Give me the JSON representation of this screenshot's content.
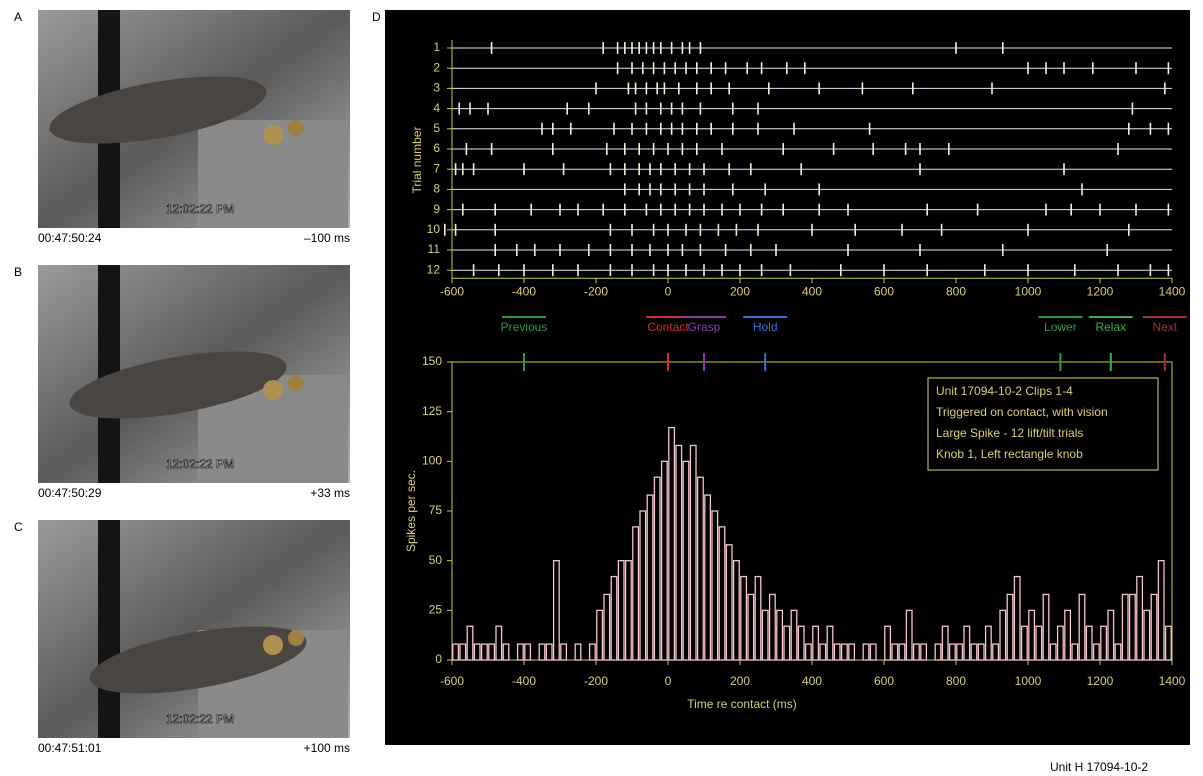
{
  "panels": [
    {
      "letter": "A",
      "clock": "12:02:22 PM",
      "timecode": "00:47:50:24",
      "offset": "–100 ms"
    },
    {
      "letter": "B",
      "clock": "12:02:22 PM",
      "timecode": "00:47:50:29",
      "offset": "+33 ms"
    },
    {
      "letter": "C",
      "clock": "12:02:22 PM",
      "timecode": "00:47:51:01",
      "offset": "+100 ms"
    }
  ],
  "panel_d_letter": "D",
  "footer": "Unit H 17094-10-2",
  "chart_data": [
    {
      "type": "raster",
      "ylabel": "Trial number",
      "color": "#f2f0d8",
      "xlim": [
        -600,
        1400
      ],
      "xticks": [
        -600,
        -400,
        -200,
        0,
        200,
        400,
        600,
        800,
        1000,
        1200,
        1400
      ],
      "yticks": [
        1,
        2,
        3,
        4,
        5,
        6,
        7,
        8,
        9,
        10,
        11,
        12
      ],
      "trials": [
        [
          -490,
          -180,
          -140,
          -120,
          -100,
          -80,
          -60,
          -40,
          -20,
          10,
          40,
          60,
          90,
          800,
          930
        ],
        [
          -140,
          -100,
          -70,
          -40,
          -10,
          20,
          50,
          80,
          120,
          160,
          220,
          260,
          330,
          380,
          1000,
          1050,
          1100,
          1180,
          1300,
          1390
        ],
        [
          -200,
          -110,
          -90,
          -60,
          -30,
          -10,
          30,
          80,
          120,
          170,
          280,
          420,
          540,
          680,
          900,
          1380
        ],
        [
          -580,
          -550,
          -500,
          -280,
          -220,
          -90,
          -60,
          -20,
          10,
          40,
          90,
          180,
          250,
          1290
        ],
        [
          -350,
          -320,
          -270,
          -150,
          -100,
          -60,
          -20,
          10,
          40,
          80,
          120,
          180,
          250,
          350,
          560,
          1280,
          1340,
          1390
        ],
        [
          -560,
          -490,
          -320,
          -170,
          -120,
          -80,
          -40,
          0,
          40,
          80,
          150,
          320,
          460,
          570,
          660,
          700,
          780,
          1250
        ],
        [
          -590,
          -570,
          -540,
          -400,
          -290,
          -160,
          -120,
          -80,
          -50,
          -20,
          20,
          60,
          100,
          170,
          230,
          370,
          700,
          1100
        ],
        [
          -120,
          -80,
          -50,
          -20,
          20,
          60,
          100,
          180,
          270,
          420,
          1150
        ],
        [
          -570,
          -480,
          -380,
          -300,
          -250,
          -180,
          -120,
          -60,
          -20,
          20,
          60,
          100,
          150,
          200,
          260,
          320,
          420,
          500,
          720,
          860,
          1050,
          1120,
          1200,
          1300,
          1390
        ],
        [
          -620,
          -590,
          -480,
          -160,
          -100,
          -40,
          0,
          50,
          90,
          140,
          190,
          250,
          400,
          520,
          650,
          760,
          1000,
          1280
        ],
        [
          -480,
          -420,
          -370,
          -300,
          -220,
          -160,
          -100,
          -50,
          0,
          40,
          90,
          160,
          230,
          300,
          500,
          700,
          930,
          1220
        ],
        [
          -540,
          -470,
          -400,
          -320,
          -250,
          -160,
          -100,
          -40,
          0,
          50,
          100,
          150,
          200,
          260,
          340,
          480,
          600,
          720,
          880,
          1000,
          1130,
          1250,
          1340,
          1390
        ]
      ]
    },
    {
      "type": "histogram",
      "xlabel": "Time re contact (ms)",
      "ylabel": "Spikes per sec.",
      "color": "#f6c4cc",
      "xlim": [
        -600,
        1400
      ],
      "xticks": [
        -600,
        -400,
        -200,
        0,
        200,
        400,
        600,
        800,
        1000,
        1200,
        1400
      ],
      "ylim": [
        0,
        150
      ],
      "yticks": [
        0,
        25,
        50,
        75,
        100,
        125,
        150
      ],
      "bins": [
        -600,
        -580,
        -560,
        -540,
        -520,
        -500,
        -480,
        -460,
        -440,
        -420,
        -400,
        -380,
        -360,
        -340,
        -320,
        -300,
        -280,
        -260,
        -240,
        -220,
        -200,
        -180,
        -160,
        -140,
        -120,
        -100,
        -80,
        -60,
        -40,
        -20,
        0,
        20,
        40,
        60,
        80,
        100,
        120,
        140,
        160,
        180,
        200,
        220,
        240,
        260,
        280,
        300,
        320,
        340,
        360,
        380,
        400,
        420,
        440,
        460,
        480,
        500,
        520,
        540,
        560,
        580,
        600,
        620,
        640,
        660,
        680,
        700,
        720,
        740,
        760,
        780,
        800,
        820,
        840,
        860,
        880,
        900,
        920,
        940,
        960,
        980,
        1000,
        1020,
        1040,
        1060,
        1080,
        1100,
        1120,
        1140,
        1160,
        1180,
        1200,
        1220,
        1240,
        1260,
        1280,
        1300,
        1320,
        1340,
        1360,
        1380,
        1400
      ],
      "values": [
        8,
        8,
        17,
        8,
        8,
        8,
        17,
        8,
        0,
        8,
        8,
        0,
        8,
        8,
        50,
        8,
        0,
        8,
        0,
        8,
        25,
        33,
        42,
        50,
        50,
        67,
        75,
        83,
        92,
        100,
        117,
        108,
        100,
        108,
        92,
        83,
        75,
        67,
        58,
        50,
        42,
        33,
        42,
        25,
        33,
        25,
        17,
        25,
        17,
        8,
        17,
        8,
        17,
        8,
        8,
        8,
        0,
        8,
        8,
        0,
        17,
        8,
        8,
        25,
        8,
        8,
        0,
        8,
        17,
        8,
        8,
        17,
        8,
        8,
        17,
        8,
        25,
        33,
        42,
        17,
        25,
        17,
        33,
        8,
        17,
        25,
        8,
        33,
        17,
        8,
        17,
        25,
        8,
        33,
        33,
        42,
        25,
        33,
        50,
        17
      ],
      "events": [
        {
          "name": "Previous",
          "color": "#2e9a3e",
          "value": -400
        },
        {
          "name": "Contact",
          "color": "#d03030",
          "value": 0
        },
        {
          "name": "Grasp",
          "color": "#8a3aa8",
          "value": 100
        },
        {
          "name": "Hold",
          "color": "#3a70d8",
          "value": 270
        },
        {
          "name": "Lower",
          "color": "#2e9a3e",
          "value": 1090
        },
        {
          "name": "Relax",
          "color": "#3ab04a",
          "value": 1230
        },
        {
          "name": "Next",
          "color": "#a03040",
          "value": 1380
        }
      ],
      "annotation": [
        "Unit 17094-10-2 Clips 1-4",
        "Triggered on contact, with vision",
        "Large Spike - 12 lift/tilt trials",
        "Knob 1, Left rectangle knob"
      ]
    }
  ]
}
